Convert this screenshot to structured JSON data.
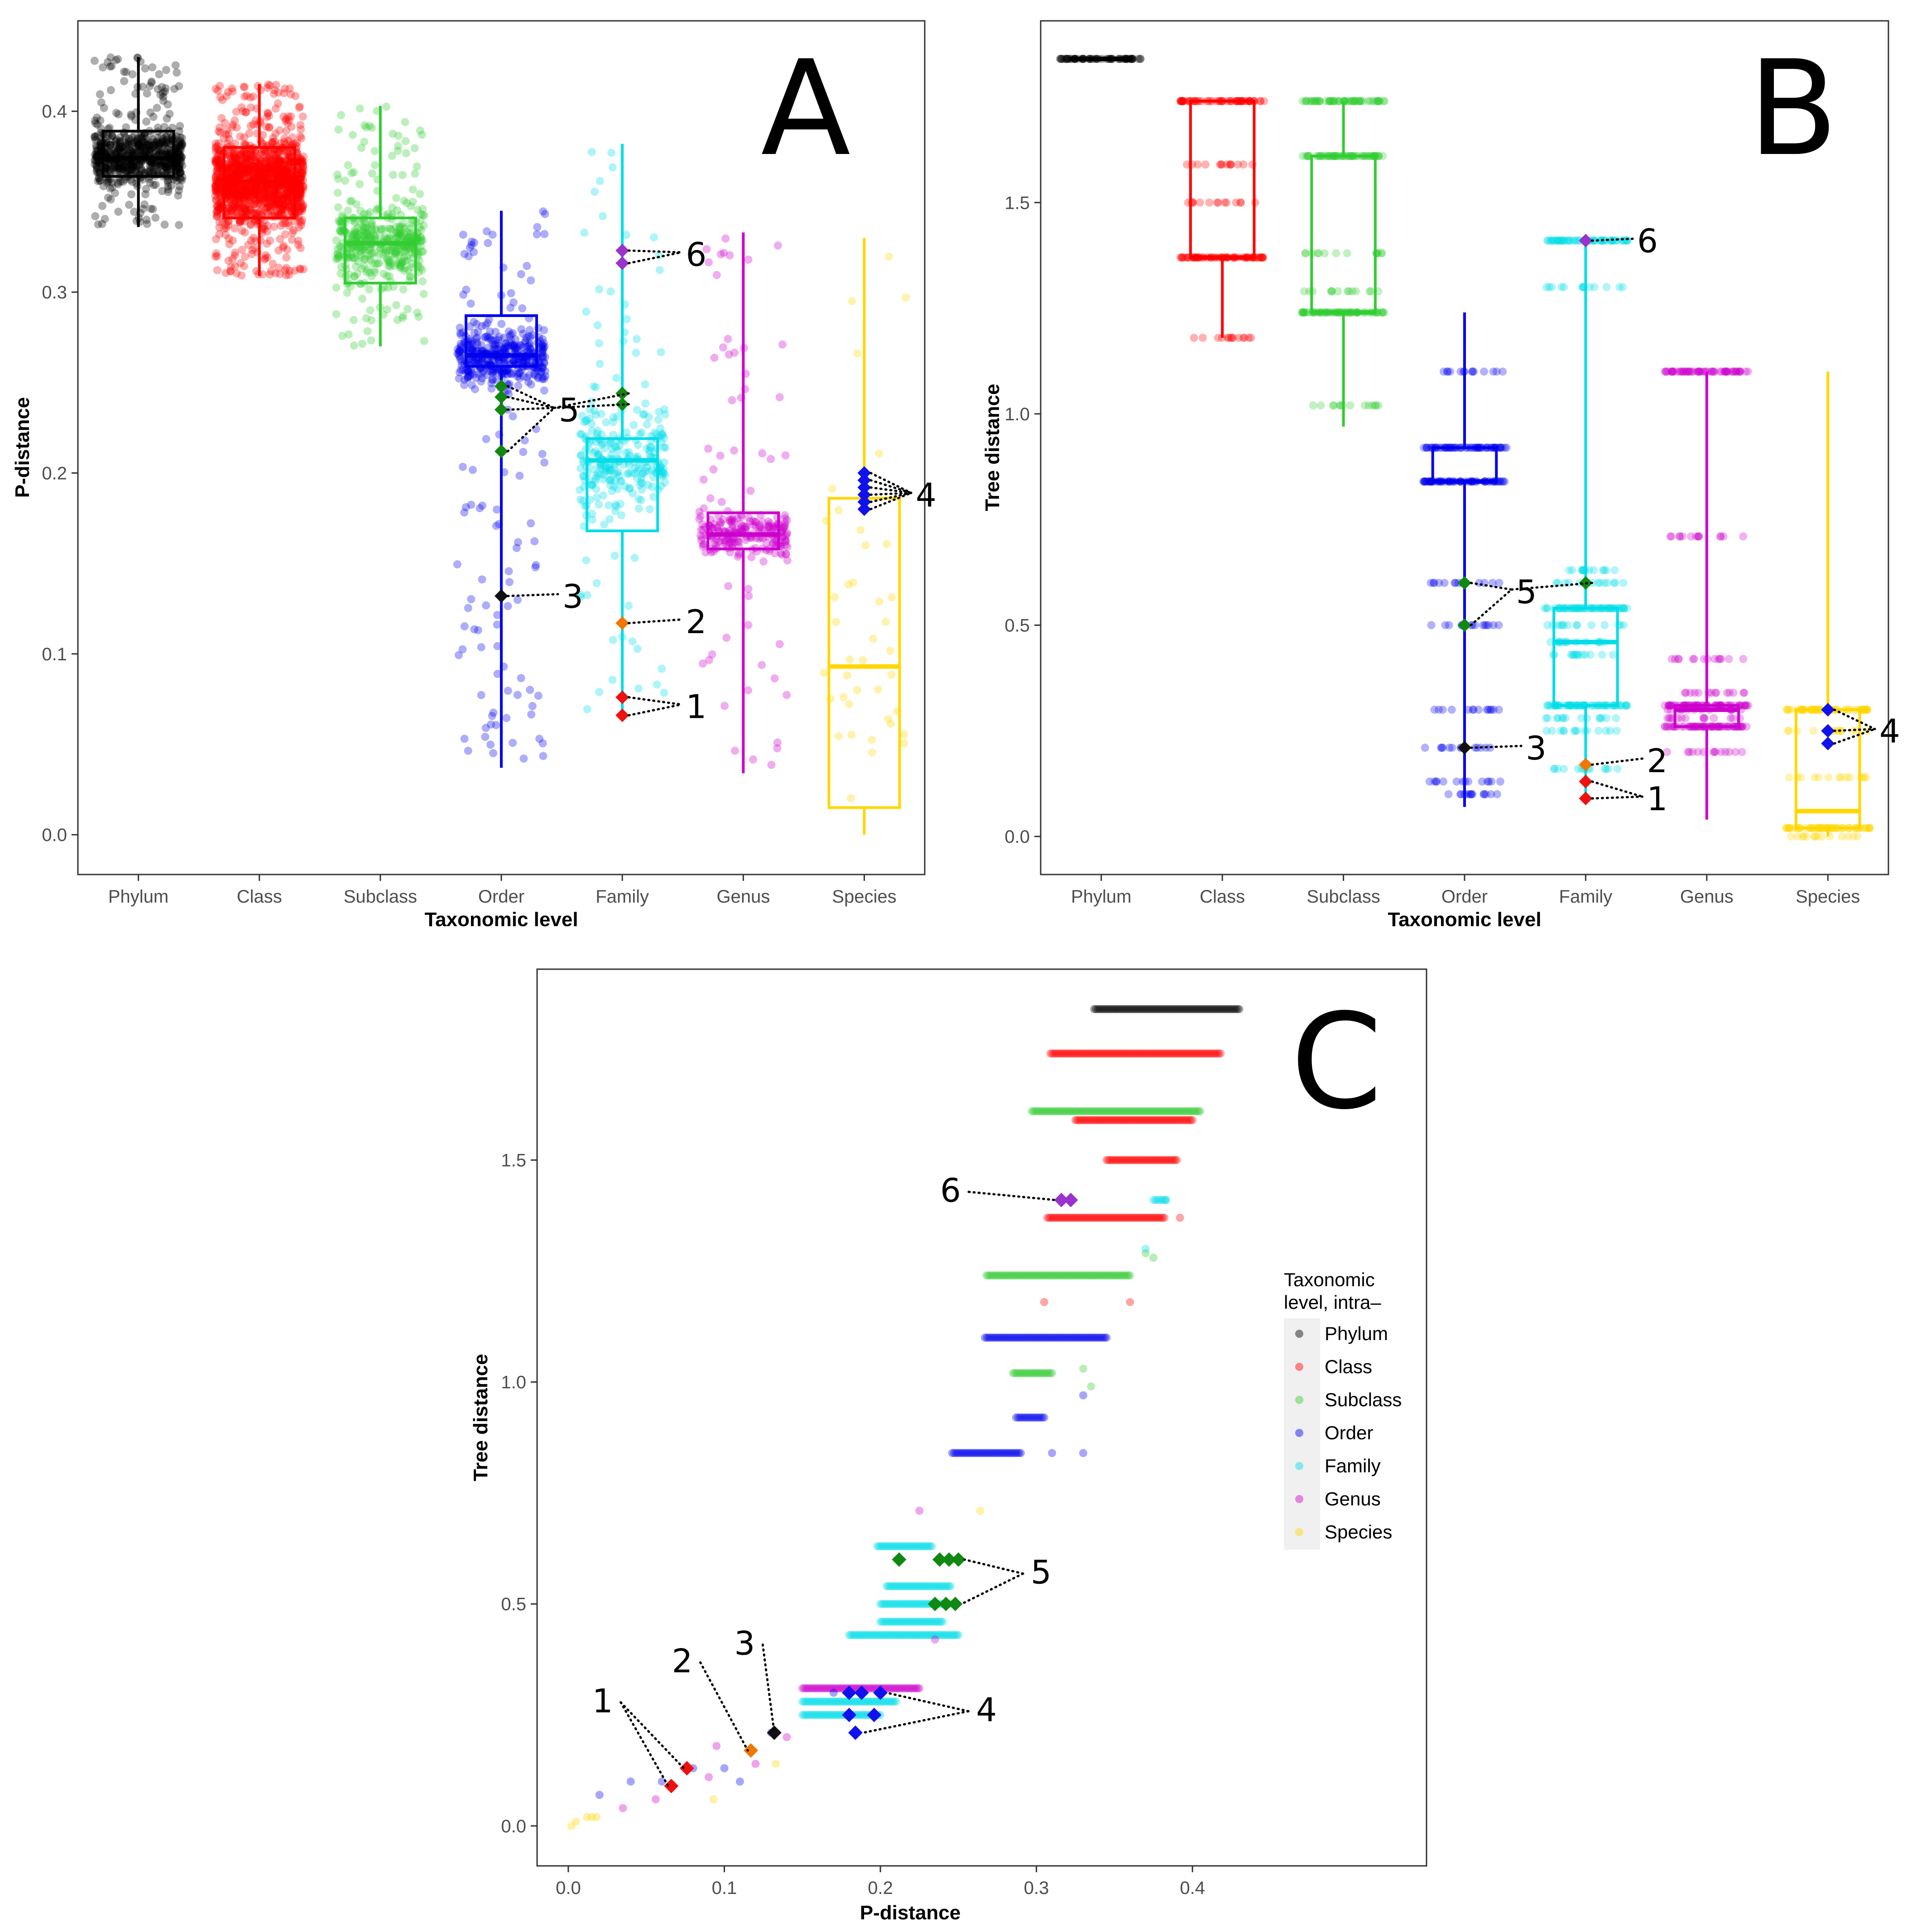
{
  "levels": [
    "Phylum",
    "Class",
    "Subclass",
    "Order",
    "Family",
    "Genus",
    "Species"
  ],
  "colors": {
    "Phylum": "#000000",
    "Class": "#ff0000",
    "Subclass": "#33cc33",
    "Order": "#0000ee",
    "Family": "#00dde8",
    "Genus": "#cc00cc",
    "Species": "#ffd700",
    "highlight_red": "#ee1111",
    "highlight_orange": "#f07800",
    "highlight_black": "#111111",
    "highlight_green": "#118811",
    "highlight_blue": "#1111ee",
    "highlight_purple": "#9933cc"
  },
  "chart_data": [
    {
      "panel": "A",
      "type": "box",
      "xlabel": "Taxonomic level",
      "ylabel": "P-distance",
      "ylim": [
        -0.022,
        0.45
      ],
      "yticks": [
        0.0,
        0.1,
        0.2,
        0.3,
        0.4
      ],
      "ytick_labels": [
        "0.0",
        "0.1",
        "0.2",
        "0.3",
        "0.4"
      ],
      "categories": [
        "Phylum",
        "Class",
        "Subclass",
        "Order",
        "Family",
        "Genus",
        "Species"
      ],
      "boxes": [
        {
          "name": "Phylum",
          "min": 0.336,
          "q1": 0.364,
          "median": 0.374,
          "q3": 0.389,
          "max": 0.43,
          "n_points": 700
        },
        {
          "name": "Class",
          "min": 0.309,
          "q1": 0.341,
          "median": 0.361,
          "q3": 0.38,
          "max": 0.415,
          "n_points": 1400
        },
        {
          "name": "Subclass",
          "min": 0.27,
          "q1": 0.305,
          "median": 0.327,
          "q3": 0.341,
          "max": 0.403,
          "n_points": 450
        },
        {
          "name": "Order",
          "min": 0.037,
          "q1": 0.259,
          "median": 0.265,
          "q3": 0.287,
          "max": 0.345,
          "n_points": 500
        },
        {
          "name": "Family",
          "min": 0.066,
          "q1": 0.168,
          "median": 0.207,
          "q3": 0.219,
          "max": 0.382,
          "n_points": 300
        },
        {
          "name": "Genus",
          "min": 0.034,
          "q1": 0.158,
          "median": 0.166,
          "q3": 0.178,
          "max": 0.333,
          "n_points": 260
        },
        {
          "name": "Species",
          "min": 0.0,
          "q1": 0.015,
          "median": 0.093,
          "q3": 0.186,
          "max": 0.33,
          "n_points": 40
        }
      ],
      "highlights": [
        {
          "category": "Order",
          "values": [
            0.248,
            0.242,
            0.235
          ],
          "marker_color": "highlight_green",
          "label": "5"
        },
        {
          "category": "Order",
          "values": [
            0.212
          ],
          "marker_color": "highlight_green",
          "label": "5"
        },
        {
          "category": "Order",
          "values": [
            0.132
          ],
          "marker_color": "highlight_black",
          "label": "3"
        },
        {
          "category": "Family",
          "values": [
            0.323,
            0.316
          ],
          "marker_color": "highlight_purple",
          "label": "6"
        },
        {
          "category": "Family",
          "values": [
            0.244,
            0.238
          ],
          "marker_color": "highlight_green",
          "label": "5"
        },
        {
          "category": "Family",
          "values": [
            0.117
          ],
          "marker_color": "highlight_orange",
          "label": "2"
        },
        {
          "category": "Family",
          "values": [
            0.076,
            0.066
          ],
          "marker_color": "highlight_red",
          "label": "1"
        },
        {
          "category": "Species",
          "values": [
            0.2,
            0.196,
            0.192,
            0.188,
            0.184,
            0.18
          ],
          "marker_color": "highlight_blue",
          "label": "4"
        }
      ],
      "annotations": [
        {
          "text": "6",
          "x_category": "Family",
          "offset": 0.6,
          "y": 0.321
        },
        {
          "text": "5",
          "x_category": "Order",
          "offset": 0.55,
          "y": 0.235
        },
        {
          "text": "3",
          "x_category": "Order",
          "offset": 0.58,
          "y": 0.132
        },
        {
          "text": "2",
          "x_category": "Family",
          "offset": 0.6,
          "y": 0.118
        },
        {
          "text": "1",
          "x_category": "Family",
          "offset": 0.6,
          "y": 0.071
        },
        {
          "text": "4",
          "x_category": "Species",
          "offset": 0.5,
          "y": 0.188
        }
      ],
      "panel_label": "A"
    },
    {
      "panel": "B",
      "type": "box",
      "xlabel": "Taxonomic level",
      "ylabel": "Tree distance",
      "ylim": [
        -0.09,
        1.93
      ],
      "yticks": [
        0.0,
        0.5,
        1.0,
        1.5
      ],
      "ytick_labels": [
        "0.0",
        "0.5",
        "1.0",
        "1.5"
      ],
      "categories": [
        "Phylum",
        "Class",
        "Subclass",
        "Order",
        "Family",
        "Genus",
        "Species"
      ],
      "boxes": [
        {
          "name": "Phylum",
          "min": 1.84,
          "q1": 1.84,
          "median": 1.84,
          "q3": 1.84,
          "max": 1.84,
          "bands": [
            1.84
          ]
        },
        {
          "name": "Class",
          "min": 1.18,
          "q1": 1.37,
          "median": 1.37,
          "q3": 1.74,
          "max": 1.74,
          "bands": [
            1.74,
            1.59,
            1.5,
            1.37,
            1.18
          ]
        },
        {
          "name": "Subclass",
          "min": 0.97,
          "q1": 1.24,
          "median": 1.24,
          "q3": 1.61,
          "max": 1.74,
          "bands": [
            1.74,
            1.61,
            1.38,
            1.29,
            1.24,
            1.02
          ]
        },
        {
          "name": "Order",
          "min": 0.07,
          "q1": 0.84,
          "median": 0.84,
          "q3": 0.92,
          "max": 1.24,
          "bands": [
            1.1,
            0.92,
            0.84,
            0.6,
            0.5,
            0.3,
            0.21,
            0.13,
            0.1
          ]
        },
        {
          "name": "Family",
          "min": 0.09,
          "q1": 0.31,
          "median": 0.46,
          "q3": 0.54,
          "max": 1.41,
          "bands": [
            1.41,
            1.3,
            0.63,
            0.6,
            0.54,
            0.5,
            0.46,
            0.43,
            0.31,
            0.28,
            0.25,
            0.16
          ]
        },
        {
          "name": "Genus",
          "min": 0.04,
          "q1": 0.26,
          "median": 0.3,
          "q3": 0.31,
          "max": 1.1,
          "bands": [
            1.1,
            0.71,
            0.42,
            0.34,
            0.31,
            0.3,
            0.28,
            0.26,
            0.2
          ]
        },
        {
          "name": "Species",
          "min": 0.0,
          "q1": 0.02,
          "median": 0.06,
          "q3": 0.3,
          "max": 1.1,
          "bands": [
            0.3,
            0.25,
            0.14,
            0.02,
            0.0
          ]
        }
      ],
      "highlights": [
        {
          "category": "Order",
          "values": [
            0.6,
            0.5
          ],
          "marker_color": "highlight_green",
          "label": "5"
        },
        {
          "category": "Order",
          "values": [
            0.21
          ],
          "marker_color": "highlight_black",
          "label": "3"
        },
        {
          "category": "Family",
          "values": [
            1.41
          ],
          "marker_color": "highlight_purple",
          "label": "6"
        },
        {
          "category": "Family",
          "values": [
            0.6
          ],
          "marker_color": "highlight_green",
          "label": "5"
        },
        {
          "category": "Family",
          "values": [
            0.17
          ],
          "marker_color": "highlight_orange",
          "label": "2"
        },
        {
          "category": "Family",
          "values": [
            0.13,
            0.09
          ],
          "marker_color": "highlight_red",
          "label": "1"
        },
        {
          "category": "Species",
          "values": [
            0.3,
            0.25,
            0.22
          ],
          "marker_color": "highlight_blue",
          "label": "4"
        }
      ],
      "annotations": [
        {
          "text": "6",
          "x_category": "Family",
          "offset": 0.5,
          "y": 1.41
        },
        {
          "text": "5",
          "x_category": "Order",
          "offset": 0.5,
          "y": 0.58
        },
        {
          "text": "3",
          "x_category": "Order",
          "offset": 0.58,
          "y": 0.21
        },
        {
          "text": "2",
          "x_category": "Family",
          "offset": 0.58,
          "y": 0.18
        },
        {
          "text": "1",
          "x_category": "Family",
          "offset": 0.58,
          "y": 0.09
        },
        {
          "text": "4",
          "x_category": "Species",
          "offset": 0.5,
          "y": 0.25
        }
      ],
      "panel_label": "B"
    },
    {
      "panel": "C",
      "type": "scatter",
      "xlabel": "P-distance",
      "ylabel": "Tree distance",
      "xlim": [
        -0.02,
        0.55
      ],
      "ylim": [
        -0.09,
        1.93
      ],
      "xticks": [
        0.0,
        0.1,
        0.2,
        0.3,
        0.4
      ],
      "xtick_labels": [
        "0.0",
        "0.1",
        "0.2",
        "0.3",
        "0.4"
      ],
      "yticks": [
        0.0,
        0.5,
        1.0,
        1.5
      ],
      "ytick_labels": [
        "0.0",
        "0.5",
        "1.0",
        "1.5"
      ],
      "bands": [
        {
          "series": "Phylum",
          "y": 1.84,
          "x_from": 0.337,
          "x_to": 0.43
        },
        {
          "series": "Class",
          "y": 1.74,
          "x_from": 0.309,
          "x_to": 0.418
        },
        {
          "series": "Subclass",
          "y": 1.61,
          "x_from": 0.297,
          "x_to": 0.405
        },
        {
          "series": "Class",
          "y": 1.59,
          "x_from": 0.325,
          "x_to": 0.4
        },
        {
          "series": "Class",
          "y": 1.5,
          "x_from": 0.345,
          "x_to": 0.39
        },
        {
          "series": "Family",
          "y": 1.41,
          "x_from": 0.375,
          "x_to": 0.383
        },
        {
          "series": "Class",
          "y": 1.37,
          "x_from": 0.307,
          "x_to": 0.382
        },
        {
          "series": "Subclass",
          "y": 1.24,
          "x_from": 0.268,
          "x_to": 0.36
        },
        {
          "series": "Order",
          "y": 1.1,
          "x_from": 0.267,
          "x_to": 0.345
        },
        {
          "series": "Subclass",
          "y": 1.02,
          "x_from": 0.285,
          "x_to": 0.31
        },
        {
          "series": "Order",
          "y": 0.92,
          "x_from": 0.287,
          "x_to": 0.305
        },
        {
          "series": "Order",
          "y": 0.84,
          "x_from": 0.246,
          "x_to": 0.29
        },
        {
          "series": "Family",
          "y": 0.63,
          "x_from": 0.198,
          "x_to": 0.233
        },
        {
          "series": "Family",
          "y": 0.54,
          "x_from": 0.204,
          "x_to": 0.245
        },
        {
          "series": "Family",
          "y": 0.5,
          "x_from": 0.2,
          "x_to": 0.245
        },
        {
          "series": "Family",
          "y": 0.46,
          "x_from": 0.2,
          "x_to": 0.24
        },
        {
          "series": "Family",
          "y": 0.43,
          "x_from": 0.18,
          "x_to": 0.25
        },
        {
          "series": "Genus",
          "y": 0.31,
          "x_from": 0.15,
          "x_to": 0.225
        },
        {
          "series": "Family",
          "y": 0.28,
          "x_from": 0.15,
          "x_to": 0.21
        },
        {
          "series": "Family",
          "y": 0.25,
          "x_from": 0.15,
          "x_to": 0.2
        }
      ],
      "scatter_points": [
        {
          "series": "Species",
          "x": 0.002,
          "y": 0.0
        },
        {
          "series": "Species",
          "x": 0.005,
          "y": 0.01
        },
        {
          "series": "Species",
          "x": 0.012,
          "y": 0.02
        },
        {
          "series": "Species",
          "x": 0.015,
          "y": 0.02
        },
        {
          "series": "Species",
          "x": 0.018,
          "y": 0.02
        },
        {
          "series": "Species",
          "x": 0.093,
          "y": 0.06
        },
        {
          "series": "Species",
          "x": 0.133,
          "y": 0.14
        },
        {
          "series": "Species",
          "x": 0.264,
          "y": 0.71
        },
        {
          "series": "Genus",
          "x": 0.035,
          "y": 0.04
        },
        {
          "series": "Genus",
          "x": 0.056,
          "y": 0.06
        },
        {
          "series": "Genus",
          "x": 0.09,
          "y": 0.11
        },
        {
          "series": "Genus",
          "x": 0.095,
          "y": 0.18
        },
        {
          "series": "Genus",
          "x": 0.12,
          "y": 0.14
        },
        {
          "series": "Genus",
          "x": 0.14,
          "y": 0.2
        },
        {
          "series": "Genus",
          "x": 0.225,
          "y": 0.71
        },
        {
          "series": "Genus",
          "x": 0.235,
          "y": 0.42
        },
        {
          "series": "Order",
          "x": 0.02,
          "y": 0.07
        },
        {
          "series": "Order",
          "x": 0.04,
          "y": 0.1
        },
        {
          "series": "Order",
          "x": 0.06,
          "y": 0.1
        },
        {
          "series": "Order",
          "x": 0.08,
          "y": 0.13
        },
        {
          "series": "Order",
          "x": 0.1,
          "y": 0.13
        },
        {
          "series": "Order",
          "x": 0.11,
          "y": 0.1
        },
        {
          "series": "Order",
          "x": 0.13,
          "y": 0.21
        },
        {
          "series": "Order",
          "x": 0.17,
          "y": 0.3
        },
        {
          "series": "Order",
          "x": 0.31,
          "y": 0.84
        },
        {
          "series": "Order",
          "x": 0.33,
          "y": 0.84
        },
        {
          "series": "Subclass",
          "x": 0.33,
          "y": 1.03
        },
        {
          "series": "Subclass",
          "x": 0.37,
          "y": 1.29
        },
        {
          "series": "Subclass",
          "x": 0.375,
          "y": 1.28
        },
        {
          "series": "Class",
          "x": 0.305,
          "y": 1.18
        },
        {
          "series": "Class",
          "x": 0.36,
          "y": 1.18
        },
        {
          "series": "Class",
          "x": 0.392,
          "y": 1.37
        },
        {
          "series": "Family",
          "x": 0.37,
          "y": 1.3
        },
        {
          "series": "Family",
          "x": 0.383,
          "y": 1.41
        },
        {
          "series": "Order",
          "x": 0.33,
          "y": 0.97
        },
        {
          "series": "Subclass",
          "x": 0.335,
          "y": 0.99
        }
      ],
      "highlights": [
        {
          "x": 0.322,
          "y": 1.41,
          "color": "highlight_purple"
        },
        {
          "x": 0.316,
          "y": 1.41,
          "color": "highlight_purple"
        },
        {
          "x": 0.212,
          "y": 0.6,
          "color": "highlight_green"
        },
        {
          "x": 0.238,
          "y": 0.6,
          "color": "highlight_green"
        },
        {
          "x": 0.244,
          "y": 0.6,
          "color": "highlight_green"
        },
        {
          "x": 0.25,
          "y": 0.6,
          "color": "highlight_green"
        },
        {
          "x": 0.235,
          "y": 0.5,
          "color": "highlight_green"
        },
        {
          "x": 0.242,
          "y": 0.5,
          "color": "highlight_green"
        },
        {
          "x": 0.248,
          "y": 0.5,
          "color": "highlight_green"
        },
        {
          "x": 0.132,
          "y": 0.21,
          "color": "highlight_black"
        },
        {
          "x": 0.117,
          "y": 0.17,
          "color": "highlight_orange"
        },
        {
          "x": 0.076,
          "y": 0.13,
          "color": "highlight_red"
        },
        {
          "x": 0.066,
          "y": 0.09,
          "color": "highlight_red"
        },
        {
          "x": 0.18,
          "y": 0.3,
          "color": "highlight_blue"
        },
        {
          "x": 0.188,
          "y": 0.3,
          "color": "highlight_blue"
        },
        {
          "x": 0.2,
          "y": 0.3,
          "color": "highlight_blue"
        },
        {
          "x": 0.18,
          "y": 0.25,
          "color": "highlight_blue"
        },
        {
          "x": 0.196,
          "y": 0.25,
          "color": "highlight_blue"
        },
        {
          "x": 0.184,
          "y": 0.21,
          "color": "highlight_blue"
        }
      ],
      "annotations": [
        {
          "text": "6",
          "x": 0.245,
          "y": 1.41,
          "targets": [
            {
              "x": 0.312,
              "y": 1.41
            }
          ]
        },
        {
          "text": "5",
          "x": 0.303,
          "y": 0.55,
          "targets": [
            {
              "x": 0.254,
              "y": 0.6
            },
            {
              "x": 0.252,
              "y": 0.5
            }
          ]
        },
        {
          "text": "4",
          "x": 0.268,
          "y": 0.24,
          "targets": [
            {
              "x": 0.204,
              "y": 0.3
            },
            {
              "x": 0.189,
              "y": 0.21
            }
          ]
        },
        {
          "text": "3",
          "x": 0.113,
          "y": 0.39,
          "targets": [
            {
              "x": 0.132,
              "y": 0.21
            }
          ]
        },
        {
          "text": "2",
          "x": 0.073,
          "y": 0.35,
          "targets": [
            {
              "x": 0.115,
              "y": 0.17
            }
          ]
        },
        {
          "text": "1",
          "x": 0.022,
          "y": 0.26,
          "targets": [
            {
              "x": 0.074,
              "y": 0.13
            },
            {
              "x": 0.064,
              "y": 0.09
            }
          ]
        }
      ],
      "legend": {
        "title_lines": [
          "Taxonomic",
          "level, intra–"
        ],
        "position": "right",
        "entries": [
          "Phylum",
          "Class",
          "Subclass",
          "Order",
          "Family",
          "Genus",
          "Species"
        ]
      },
      "panel_label": "C"
    }
  ]
}
